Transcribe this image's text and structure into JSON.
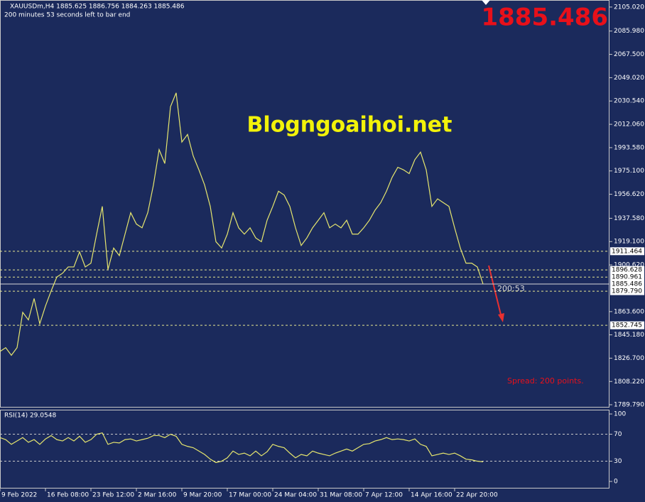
{
  "chart_data": [
    {
      "type": "line",
      "title": "XAUUSDm,H4  1885.625 1886.756 1884.263 1885.486",
      "subtitle": "200 minutes 53 seconds left to bar end",
      "watermark": "Blogngoaihoi.net",
      "timer": "200:53",
      "spread": "Spread: 200 points.",
      "color": "#e6e66e",
      "current_price": 1885.486,
      "hlines": [
        1911.464,
        1896.628,
        1890.961,
        {
          "value": 1879.79,
          "label": "1879.790"
        },
        1852.745
      ],
      "values": [
        1832,
        1835,
        1829,
        1835,
        1863,
        1857,
        1874,
        1854,
        1868,
        1880,
        1891,
        1894,
        1899,
        1899,
        1911,
        1899,
        1902,
        1925,
        1947,
        1897,
        1914,
        1908,
        1925,
        1942,
        1933,
        1930,
        1942,
        1964,
        1992,
        1981,
        2026,
        2037,
        1998,
        2004,
        1987,
        1976,
        1964,
        1947,
        1919,
        1914,
        1925,
        1942,
        1930,
        1925,
        1930,
        1922,
        1919,
        1936,
        1947,
        1959,
        1956,
        1947,
        1930,
        1916,
        1922,
        1930,
        1936,
        1942,
        1930,
        1933,
        1930,
        1936,
        1925,
        1925,
        1930,
        1936,
        1944,
        1950,
        1959,
        1970,
        1978,
        1976,
        1973,
        1984,
        1990,
        1976,
        1947,
        1953,
        1950,
        1947,
        1930,
        1914,
        1902,
        1902,
        1899,
        1885.5
      ],
      "xlim": [
        0,
        107.25
      ],
      "xticks": [
        {
          "value": 0,
          "label": "9 Feb 2022"
        },
        {
          "value": 8,
          "label": "16 Feb 08:00"
        },
        {
          "value": 16,
          "label": "23 Feb 12:00"
        },
        {
          "value": 24,
          "label": "2 Mar 16:00"
        },
        {
          "value": 32,
          "label": "9 Mar 20:00"
        },
        {
          "value": 40,
          "label": "17 Mar 00:00"
        },
        {
          "value": 48,
          "label": "24 Mar 04:00"
        },
        {
          "value": 56,
          "label": "31 Mar 08:00"
        },
        {
          "value": 64,
          "label": "7 Apr 12:00"
        },
        {
          "value": 72,
          "label": "14 Apr 16:00"
        },
        {
          "value": 80,
          "label": "22 Apr 20:00"
        }
      ],
      "ylim": [
        1788.1,
        2110.6
      ],
      "yticks": [
        {
          "value": 2105.02,
          "label": "2105.020"
        },
        {
          "value": 2085.98,
          "label": "2085.980"
        },
        {
          "value": 2067.5,
          "label": "2067.500"
        },
        {
          "value": 2049.02,
          "label": "2049.020"
        },
        {
          "value": 2030.54,
          "label": "2030.540"
        },
        {
          "value": 2012.06,
          "label": "2012.060"
        },
        {
          "value": 1993.58,
          "label": "1993.580"
        },
        {
          "value": 1975.1,
          "label": "1975.100"
        },
        {
          "value": 1956.62,
          "label": "1956.620"
        },
        {
          "value": 1937.58,
          "label": "1937.580"
        },
        {
          "value": 1919.1,
          "label": "1919.100"
        },
        {
          "value": 1900.62,
          "label": "1900.620"
        },
        {
          "value": 1863.6,
          "label": "1863.600"
        },
        {
          "value": 1845.18,
          "label": "1845.180"
        },
        {
          "value": 1826.7,
          "label": "1826.700"
        },
        {
          "value": 1808.22,
          "label": "1808.220"
        },
        {
          "value": 1789.79,
          "label": "1789.790"
        }
      ]
    },
    {
      "type": "line",
      "title": "RSI(14) 29.0548",
      "color": "#e6e66e",
      "levels": [
        70,
        30
      ],
      "values": [
        65,
        62,
        55,
        60,
        65,
        58,
        62,
        55,
        63,
        68,
        62,
        60,
        65,
        60,
        67,
        58,
        62,
        70,
        72,
        55,
        58,
        57,
        62,
        63,
        60,
        62,
        64,
        68,
        68,
        65,
        70,
        67,
        55,
        52,
        50,
        45,
        40,
        33,
        28,
        30,
        35,
        45,
        40,
        42,
        38,
        45,
        38,
        44,
        55,
        52,
        50,
        42,
        35,
        40,
        38,
        45,
        42,
        40,
        38,
        42,
        45,
        48,
        45,
        50,
        55,
        56,
        60,
        62,
        65,
        62,
        63,
        62,
        60,
        63,
        55,
        52,
        38,
        40,
        42,
        40,
        42,
        38,
        33,
        32,
        30,
        29.0548
      ],
      "ylim": [
        -10.5,
        105.3
      ],
      "yticks": [
        100,
        70,
        30,
        0
      ]
    }
  ]
}
